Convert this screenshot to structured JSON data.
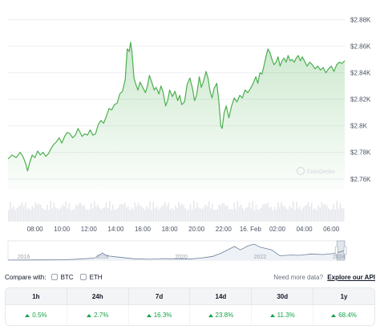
{
  "chart_data": {
    "type": "area",
    "y_ticks": [
      "$2.88K",
      "$2.86K",
      "$2.84K",
      "$2.82K",
      "$2.8K",
      "$2.78K",
      "$2.76K"
    ],
    "y_tick_values": [
      2880,
      2860,
      2840,
      2820,
      2800,
      2780,
      2760
    ],
    "ylim": [
      2752,
      2890
    ],
    "x_ticks": [
      "08:00",
      "10:00",
      "12:00",
      "14:00",
      "16:00",
      "18:00",
      "20:00",
      "22:00",
      "16. Feb",
      "02:00",
      "04:00",
      "06:00"
    ],
    "x_tick_hours": [
      2.0,
      4.0,
      6.0,
      8.0,
      10.0,
      12.0,
      14.0,
      16.0,
      18.0,
      20.0,
      22.0,
      24.0
    ],
    "x_range_hours": [
      0,
      25
    ],
    "series": [
      {
        "color": "#4caf50",
        "points": [
          [
            0.0,
            2775
          ],
          [
            0.3,
            2778
          ],
          [
            0.6,
            2776
          ],
          [
            0.9,
            2780
          ],
          [
            1.1,
            2777
          ],
          [
            1.3,
            2772
          ],
          [
            1.45,
            2766
          ],
          [
            1.6,
            2772
          ],
          [
            1.8,
            2778
          ],
          [
            2.0,
            2776
          ],
          [
            2.2,
            2781
          ],
          [
            2.4,
            2778
          ],
          [
            2.6,
            2780
          ],
          [
            2.8,
            2777
          ],
          [
            3.0,
            2779
          ],
          [
            3.2,
            2783
          ],
          [
            3.4,
            2786
          ],
          [
            3.6,
            2788
          ],
          [
            3.8,
            2791
          ],
          [
            4.0,
            2787
          ],
          [
            4.2,
            2792
          ],
          [
            4.4,
            2795
          ],
          [
            4.6,
            2794
          ],
          [
            4.8,
            2791
          ],
          [
            5.0,
            2793
          ],
          [
            5.2,
            2798
          ],
          [
            5.35,
            2795
          ],
          [
            5.5,
            2792
          ],
          [
            5.7,
            2794
          ],
          [
            5.9,
            2793
          ],
          [
            6.1,
            2797
          ],
          [
            6.3,
            2793
          ],
          [
            6.5,
            2794
          ],
          [
            6.7,
            2801
          ],
          [
            6.9,
            2804
          ],
          [
            7.1,
            2802
          ],
          [
            7.3,
            2807
          ],
          [
            7.5,
            2813
          ],
          [
            7.7,
            2812
          ],
          [
            7.9,
            2816
          ],
          [
            8.1,
            2817
          ],
          [
            8.3,
            2824
          ],
          [
            8.5,
            2826
          ],
          [
            8.7,
            2835
          ],
          [
            8.85,
            2858
          ],
          [
            9.0,
            2856
          ],
          [
            9.1,
            2863
          ],
          [
            9.2,
            2856
          ],
          [
            9.35,
            2836
          ],
          [
            9.5,
            2831
          ],
          [
            9.65,
            2827
          ],
          [
            9.8,
            2833
          ],
          [
            10.0,
            2829
          ],
          [
            10.2,
            2825
          ],
          [
            10.35,
            2830
          ],
          [
            10.5,
            2838
          ],
          [
            10.7,
            2832
          ],
          [
            10.85,
            2827
          ],
          [
            11.0,
            2829
          ],
          [
            11.2,
            2824
          ],
          [
            11.35,
            2830
          ],
          [
            11.5,
            2826
          ],
          [
            11.7,
            2815
          ],
          [
            11.85,
            2819
          ],
          [
            12.0,
            2827
          ],
          [
            12.2,
            2822
          ],
          [
            12.4,
            2826
          ],
          [
            12.6,
            2819
          ],
          [
            12.75,
            2823
          ],
          [
            12.9,
            2816
          ],
          [
            13.1,
            2818
          ],
          [
            13.3,
            2831
          ],
          [
            13.5,
            2836
          ],
          [
            13.7,
            2828
          ],
          [
            13.85,
            2819
          ],
          [
            14.0,
            2823
          ],
          [
            14.2,
            2837
          ],
          [
            14.35,
            2829
          ],
          [
            14.5,
            2833
          ],
          [
            14.7,
            2841
          ],
          [
            14.85,
            2836
          ],
          [
            15.0,
            2826
          ],
          [
            15.15,
            2821
          ],
          [
            15.3,
            2828
          ],
          [
            15.5,
            2832
          ],
          [
            15.65,
            2819
          ],
          [
            15.8,
            2800
          ],
          [
            15.9,
            2798
          ],
          [
            16.05,
            2810
          ],
          [
            16.2,
            2815
          ],
          [
            16.4,
            2806
          ],
          [
            16.6,
            2815
          ],
          [
            16.8,
            2821
          ],
          [
            17.0,
            2818
          ],
          [
            17.2,
            2823
          ],
          [
            17.4,
            2821
          ],
          [
            17.6,
            2827
          ],
          [
            17.8,
            2825
          ],
          [
            18.0,
            2828
          ],
          [
            18.2,
            2832
          ],
          [
            18.4,
            2837
          ],
          [
            18.55,
            2832
          ],
          [
            18.7,
            2840
          ],
          [
            18.85,
            2839
          ],
          [
            19.0,
            2845
          ],
          [
            19.15,
            2852
          ],
          [
            19.3,
            2858
          ],
          [
            19.45,
            2855
          ],
          [
            19.6,
            2850
          ],
          [
            19.75,
            2846
          ],
          [
            19.9,
            2848
          ],
          [
            20.05,
            2852
          ],
          [
            20.2,
            2845
          ],
          [
            20.35,
            2849
          ],
          [
            20.5,
            2851
          ],
          [
            20.65,
            2848
          ],
          [
            20.8,
            2853
          ],
          [
            20.95,
            2849
          ],
          [
            21.1,
            2850
          ],
          [
            21.25,
            2848
          ],
          [
            21.4,
            2851
          ],
          [
            21.55,
            2853
          ],
          [
            21.7,
            2849
          ],
          [
            21.85,
            2852
          ],
          [
            22.0,
            2849
          ],
          [
            22.2,
            2845
          ],
          [
            22.4,
            2848
          ],
          [
            22.6,
            2846
          ],
          [
            22.8,
            2843
          ],
          [
            23.0,
            2845
          ],
          [
            23.2,
            2842
          ],
          [
            23.4,
            2844
          ],
          [
            23.6,
            2840
          ],
          [
            23.8,
            2843
          ],
          [
            24.0,
            2845
          ],
          [
            24.2,
            2841
          ],
          [
            24.4,
            2846
          ],
          [
            24.6,
            2848
          ],
          [
            24.8,
            2847
          ],
          [
            25.0,
            2849
          ]
        ]
      }
    ],
    "navigator": {
      "x_ticks": [
        "2016",
        "2018",
        "2020",
        "2022",
        "2024"
      ],
      "x_tick_years": [
        2016,
        2018,
        2020,
        2022,
        2024
      ],
      "x_range_years": [
        2015.6,
        2024.15
      ],
      "selection_years": [
        2023.95,
        2024.15
      ],
      "points": [
        [
          2015.6,
          3
        ],
        [
          2016.0,
          5
        ],
        [
          2016.5,
          8
        ],
        [
          2017.0,
          10
        ],
        [
          2017.4,
          30
        ],
        [
          2017.8,
          60
        ],
        [
          2018.0,
          210
        ],
        [
          2018.1,
          130
        ],
        [
          2018.4,
          90
        ],
        [
          2018.8,
          40
        ],
        [
          2019.2,
          25
        ],
        [
          2019.5,
          45
        ],
        [
          2019.8,
          40
        ],
        [
          2020.2,
          30
        ],
        [
          2020.5,
          60
        ],
        [
          2020.8,
          110
        ],
        [
          2021.0,
          200
        ],
        [
          2021.35,
          400
        ],
        [
          2021.5,
          300
        ],
        [
          2021.7,
          420
        ],
        [
          2021.85,
          470
        ],
        [
          2022.0,
          380
        ],
        [
          2022.3,
          300
        ],
        [
          2022.5,
          130
        ],
        [
          2022.8,
          150
        ],
        [
          2023.0,
          140
        ],
        [
          2023.3,
          180
        ],
        [
          2023.6,
          165
        ],
        [
          2023.9,
          200
        ],
        [
          2024.15,
          285
        ]
      ]
    },
    "volume_bars": 200,
    "watermark": "CoinGecko"
  },
  "compare": {
    "label": "Compare with:",
    "options": [
      "BTC",
      "ETH"
    ],
    "need_more": "Need more data?",
    "api_link": "Explore our API"
  },
  "performance": {
    "periods": [
      "1h",
      "24h",
      "7d",
      "14d",
      "30d",
      "1y"
    ],
    "changes": [
      "0.5%",
      "2.7%",
      "16.3%",
      "23.8%",
      "11.3%",
      "68.4%"
    ]
  }
}
